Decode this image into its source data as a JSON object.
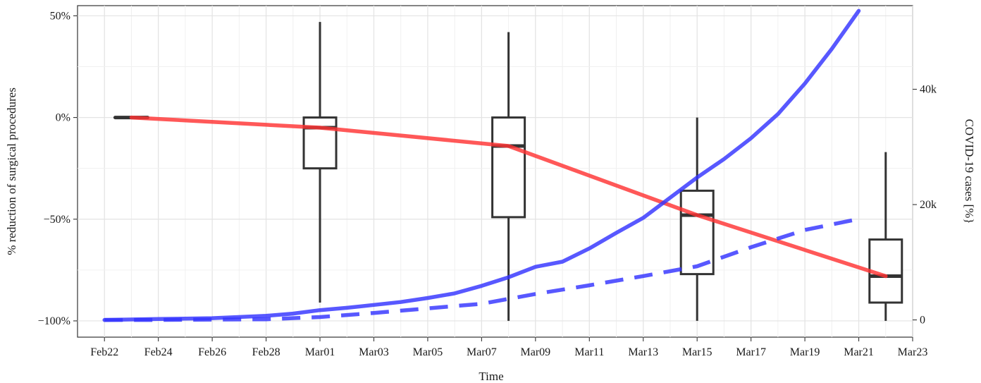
{
  "chart_data": {
    "type": "line",
    "xlabel": "Time",
    "ylabel_left": "% reduction of surgical procedures",
    "ylabel_right": "COVID-19 cases [%}",
    "x_ticks": [
      "Feb22",
      "Feb24",
      "Feb26",
      "Feb28",
      "Mar01",
      "Mar03",
      "Mar05",
      "Mar07",
      "Mar09",
      "Mar11",
      "Mar13",
      "Mar15",
      "Mar17",
      "Mar19",
      "Mar21",
      "Mar23"
    ],
    "x_range": [
      "2020-02-21",
      "2020-03-23"
    ],
    "y_left": {
      "ticks": [
        50,
        0,
        -50,
        -100
      ],
      "tick_labels": [
        "50%",
        "0%",
        "−50%",
        "−100%"
      ],
      "range": [
        -108,
        55
      ]
    },
    "y_right": {
      "ticks": [
        0,
        20000,
        40000
      ],
      "tick_labels": [
        "0",
        "20k",
        "40k"
      ],
      "range": [
        -2990,
        54500
      ]
    },
    "grid": true,
    "series": [
      {
        "axis": "left",
        "color": "#ff3333",
        "style": "solid",
        "points": [
          [
            "2020-02-23",
            0
          ],
          [
            "2020-03-01",
            -5
          ],
          [
            "2020-03-08",
            -14
          ],
          [
            "2020-03-15",
            -48
          ],
          [
            "2020-03-22",
            -78
          ]
        ]
      },
      {
        "axis": "right",
        "color": "#3333ff",
        "style": "solid",
        "points": [
          [
            "2020-02-22",
            0
          ],
          [
            "2020-02-24",
            150
          ],
          [
            "2020-02-26",
            300
          ],
          [
            "2020-02-28",
            700
          ],
          [
            "2020-02-29",
            1100
          ],
          [
            "2020-03-01",
            1700
          ],
          [
            "2020-03-02",
            2100
          ],
          [
            "2020-03-03",
            2600
          ],
          [
            "2020-03-04",
            3100
          ],
          [
            "2020-03-05",
            3800
          ],
          [
            "2020-03-06",
            4600
          ],
          [
            "2020-03-07",
            5900
          ],
          [
            "2020-03-08",
            7400
          ],
          [
            "2020-03-09",
            9200
          ],
          [
            "2020-03-10",
            10100
          ],
          [
            "2020-03-11",
            12400
          ],
          [
            "2020-03-12",
            15100
          ],
          [
            "2020-03-13",
            17700
          ],
          [
            "2020-03-14",
            21200
          ],
          [
            "2020-03-15",
            24700
          ],
          [
            "2020-03-16",
            27900
          ],
          [
            "2020-03-17",
            31500
          ],
          [
            "2020-03-18",
            35700
          ],
          [
            "2020-03-19",
            41000
          ],
          [
            "2020-03-20",
            47000
          ],
          [
            "2020-03-21",
            53600
          ]
        ]
      },
      {
        "axis": "right",
        "color": "#3333ff",
        "style": "dashed",
        "points": [
          [
            "2020-02-22",
            0
          ],
          [
            "2020-02-24",
            0
          ],
          [
            "2020-02-26",
            50
          ],
          [
            "2020-02-28",
            100
          ],
          [
            "2020-03-01",
            500
          ],
          [
            "2020-03-03",
            1200
          ],
          [
            "2020-03-05",
            2000
          ],
          [
            "2020-03-07",
            2800
          ],
          [
            "2020-03-09",
            4500
          ],
          [
            "2020-03-11",
            6000
          ],
          [
            "2020-03-13",
            7600
          ],
          [
            "2020-03-15",
            9300
          ],
          [
            "2020-03-17",
            12600
          ],
          [
            "2020-03-19",
            15600
          ],
          [
            "2020-03-21",
            17500
          ]
        ]
      }
    ],
    "boxplots": [
      {
        "date": "2020-02-23",
        "min": 0,
        "q1": 0,
        "median": 0,
        "q3": 0,
        "max": 0
      },
      {
        "date": "2020-03-01",
        "min": -91,
        "q1": -25,
        "median": -5,
        "q3": 0,
        "max": 47
      },
      {
        "date": "2020-03-08",
        "min": -100,
        "q1": -49,
        "median": -14,
        "q3": 0,
        "max": 42
      },
      {
        "date": "2020-03-15",
        "min": -100,
        "q1": -77,
        "median": -48,
        "q3": -36,
        "max": 0
      },
      {
        "date": "2020-03-22",
        "min": -100,
        "q1": -91,
        "median": -78,
        "q3": -60,
        "max": -17
      }
    ]
  }
}
